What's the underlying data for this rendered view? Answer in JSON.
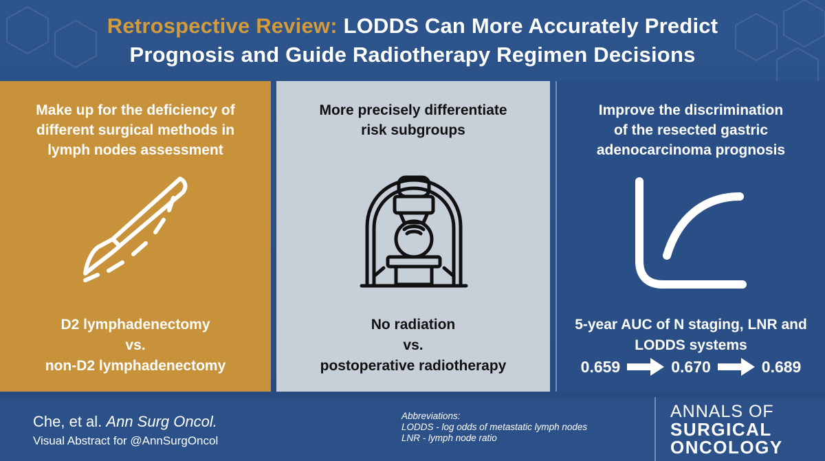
{
  "header": {
    "title_accent": "Retrospective Review:",
    "title_line1_rest": " LODDS Can More Accurately Predict",
    "title_line2": "Prognosis and Guide Radiotherapy Regimen Decisions"
  },
  "panels": [
    {
      "title": "Make up for the deficiency of\ndifferent surgical methods in\nlymph nodes assessment",
      "icon": "scalpel-icon",
      "foot": [
        "D2 lymphadenectomy",
        "vs.",
        "non-D2 lymphadenectomy"
      ]
    },
    {
      "title": "More precisely differentiate\nrisk subgroups",
      "icon": "radiotherapy-machine-icon",
      "foot": [
        "No radiation",
        "vs.",
        "postoperative radiotherapy"
      ]
    },
    {
      "title": "Improve the discrimination\nof the resected gastric\nadenocarcinoma prognosis",
      "icon": "curve-icon",
      "foot": [
        "5-year AUC of N staging, LNR and",
        "LODDS systems"
      ],
      "auc_values": [
        "0.659",
        "0.670",
        "0.689"
      ]
    }
  ],
  "footer": {
    "authors": "Che, et al.",
    "journal": "Ann Surg Oncol.",
    "visual_abstract": "Visual Abstract for @AnnSurgOncol",
    "abbreviations_title": "Abbreviations:",
    "abbreviations": [
      "LODDS - log odds of metastatic lymph nodes",
      "LNR - lymph node ratio"
    ],
    "logo_line1": "ANNALS OF",
    "logo_line2": "SURGICAL",
    "logo_line3": "ONCOLOGY"
  },
  "colors": {
    "background": "#2d548c",
    "accent_gold": "#d49b3b",
    "panel_gold": "#c8923a",
    "panel_grey": "#c7cfd8",
    "panel_blue": "#2a4f86"
  }
}
